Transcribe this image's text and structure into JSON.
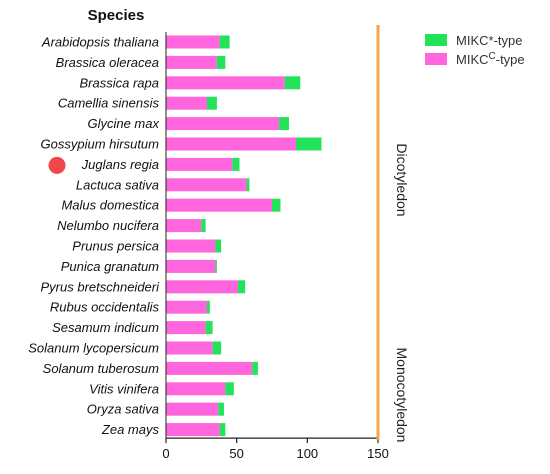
{
  "chart_data": {
    "type": "bar",
    "orientation": "horizontal",
    "stacked": true,
    "ytitle": "Species",
    "categories": [
      "Arabidopsis thaliana",
      "Brassica oleracea",
      "Brassica rapa",
      "Camellia sinensis",
      "Glycine max",
      "Gossypium hirsutum",
      "Juglans regia",
      "Lactuca sativa",
      "Malus domestica",
      "Nelumbo nucifera",
      "Prunus persica",
      "Punica granatum",
      "Pyrus bretschneideri",
      "Rubus occidentalis",
      "Sesamum indicum",
      "Solanum lycopersicum",
      "Solanum tuberosum",
      "Vitis vinifera",
      "Oryza sativa",
      "Zea mays"
    ],
    "series": [
      {
        "key": "mikc_c",
        "name_main": "MIKC",
        "name_sup": "C",
        "name_tail": "-type",
        "color": "#ff66dd",
        "values": [
          38,
          36,
          84,
          29,
          80,
          92,
          47,
          57,
          75,
          25,
          35,
          35,
          51,
          29,
          28,
          33,
          61,
          42,
          37,
          38
        ]
      },
      {
        "key": "mikc_star",
        "name_main": "MIKC*",
        "name_sup": "",
        "name_tail": "-type",
        "color": "#22e35a",
        "values": [
          7,
          6,
          11,
          7,
          7,
          18,
          5,
          2,
          6,
          3,
          4,
          1,
          5,
          2,
          5,
          6,
          4,
          6,
          4,
          4
        ]
      }
    ],
    "xlim": [
      0,
      150
    ],
    "xticks": [
      0,
      50,
      100,
      150
    ],
    "groups": [
      {
        "label": "Dicotyledon",
        "first": 0,
        "last": 17,
        "color": "#f5a54a"
      },
      {
        "label": "Monocotyledon",
        "first": 18,
        "last": 19,
        "color": "#f5a54a"
      }
    ],
    "highlight_marker": {
      "category_index": 6,
      "color": "#f04848"
    },
    "legend_position": "top-right",
    "grid": false
  }
}
